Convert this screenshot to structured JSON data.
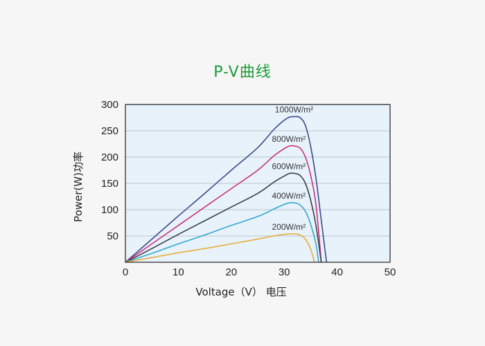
{
  "chart_data": {
    "type": "line",
    "title": "P-V曲线",
    "xlabel": "Voltage（V） 电压",
    "ylabel": "Power(W)功率",
    "xlim": [
      0,
      50
    ],
    "ylim": [
      0,
      300
    ],
    "xticks": [
      0,
      10,
      20,
      30,
      40,
      50
    ],
    "yticks": [
      50,
      100,
      150,
      200,
      250,
      300
    ],
    "grid": true,
    "plot_background": "#e7f2fa",
    "series": [
      {
        "name": "1000W/m²",
        "color": "#3d4a8a",
        "points": [
          [
            0,
            0
          ],
          [
            5,
            44
          ],
          [
            10,
            88
          ],
          [
            15,
            131
          ],
          [
            20,
            175
          ],
          [
            25,
            218
          ],
          [
            28,
            252
          ],
          [
            30,
            270
          ],
          [
            31,
            276
          ],
          [
            32,
            277
          ],
          [
            33,
            275
          ],
          [
            34,
            260
          ],
          [
            35,
            220
          ],
          [
            36,
            160
          ],
          [
            37,
            80
          ],
          [
            38,
            0
          ]
        ]
      },
      {
        "name": "800W/m²",
        "color": "#c9307e",
        "points": [
          [
            0,
            0
          ],
          [
            5,
            35
          ],
          [
            10,
            70
          ],
          [
            15,
            105
          ],
          [
            20,
            140
          ],
          [
            25,
            175
          ],
          [
            28,
            202
          ],
          [
            30,
            216
          ],
          [
            31,
            221
          ],
          [
            32,
            221
          ],
          [
            33,
            217
          ],
          [
            34,
            200
          ],
          [
            35,
            165
          ],
          [
            36,
            110
          ],
          [
            37,
            0
          ]
        ]
      },
      {
        "name": "600W/m²",
        "color": "#3a3f48",
        "points": [
          [
            0,
            0
          ],
          [
            5,
            26
          ],
          [
            10,
            53
          ],
          [
            15,
            79
          ],
          [
            20,
            105
          ],
          [
            25,
            131
          ],
          [
            28,
            152
          ],
          [
            30,
            164
          ],
          [
            31,
            169
          ],
          [
            32,
            169
          ],
          [
            33,
            165
          ],
          [
            34,
            150
          ],
          [
            35,
            118
          ],
          [
            36,
            70
          ],
          [
            37,
            0
          ]
        ]
      },
      {
        "name": "400W/m²",
        "color": "#36a7cf",
        "points": [
          [
            0,
            0
          ],
          [
            5,
            17
          ],
          [
            10,
            35
          ],
          [
            15,
            52
          ],
          [
            20,
            70
          ],
          [
            25,
            87
          ],
          [
            28,
            101
          ],
          [
            30,
            110
          ],
          [
            31,
            113
          ],
          [
            32,
            113
          ],
          [
            33,
            109
          ],
          [
            34,
            97
          ],
          [
            35,
            72
          ],
          [
            36,
            35
          ],
          [
            36.5,
            0
          ]
        ]
      },
      {
        "name": "200W/m²",
        "color": "#e8ad3c",
        "points": [
          [
            0,
            0
          ],
          [
            5,
            9
          ],
          [
            10,
            18
          ],
          [
            15,
            26
          ],
          [
            20,
            35
          ],
          [
            25,
            44
          ],
          [
            28,
            50
          ],
          [
            30,
            53
          ],
          [
            31,
            54
          ],
          [
            32,
            54
          ],
          [
            33,
            52
          ],
          [
            34,
            44
          ],
          [
            35,
            25
          ],
          [
            35.7,
            0
          ]
        ]
      }
    ]
  }
}
